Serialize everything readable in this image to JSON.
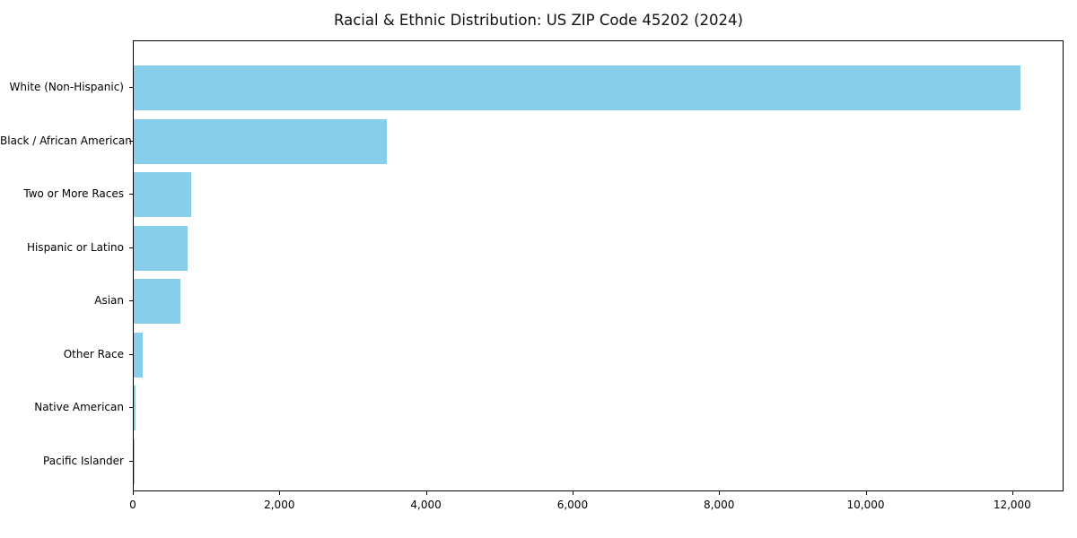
{
  "chart_data": {
    "type": "bar",
    "orientation": "horizontal",
    "title": "Racial & Ethnic Distribution: US ZIP Code 45202 (2024)",
    "categories": [
      "White (Non-Hispanic)",
      "Black / African American",
      "Two or More Races",
      "Hispanic or Latino",
      "Asian",
      "Other Race",
      "Native American",
      "Pacific Islander"
    ],
    "values": [
      12100,
      3450,
      780,
      740,
      640,
      120,
      20,
      10
    ],
    "bar_color": "#87CEEB",
    "xlabel": "",
    "ylabel": "",
    "xlim": [
      0,
      12700
    ],
    "x_ticks": [
      0,
      2000,
      4000,
      6000,
      8000,
      10000,
      12000
    ],
    "x_tick_labels": [
      "0",
      "2,000",
      "4,000",
      "6,000",
      "8,000",
      "10,000",
      "12,000"
    ],
    "grid": "off",
    "legend": "none"
  }
}
